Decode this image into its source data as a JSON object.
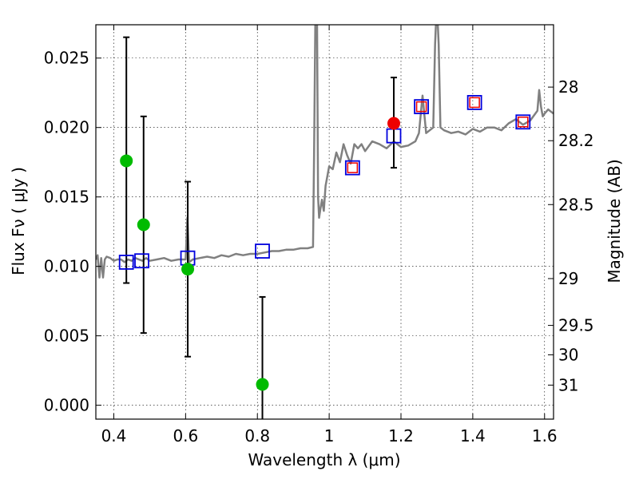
{
  "chart_data": {
    "type": "scatter",
    "xlabel": "Wavelength  λ (μm)",
    "ylabel": "Flux  Fν  ( μJy )",
    "ylabel_right": "Magnitude (AB)",
    "xlim": [
      0.35,
      1.625
    ],
    "ylim": [
      -0.001,
      0.0274
    ],
    "grid": true,
    "x_ticks": [
      0.4,
      0.6,
      0.8,
      1.0,
      1.2,
      1.4,
      1.6
    ],
    "x_tick_labels": [
      "0.4",
      "0.6",
      "0.8",
      "1",
      "1.2",
      "1.4",
      "1.6"
    ],
    "y_ticks": [
      0.0,
      0.005,
      0.01,
      0.015,
      0.02,
      0.025
    ],
    "y_tick_labels": [
      "0.000",
      "0.005",
      "0.010",
      "0.015",
      "0.020",
      "0.025"
    ],
    "right_ticks": [
      {
        "label": "28",
        "flux": 0.02291
      },
      {
        "label": "28.2",
        "flux": 0.01905
      },
      {
        "label": "28.5",
        "flux": 0.01445
      },
      {
        "label": "29",
        "flux": 0.00912
      },
      {
        "label": "29.5",
        "flux": 0.00575
      },
      {
        "label": "30",
        "flux": 0.00363
      },
      {
        "label": "31",
        "flux": 0.00145
      }
    ],
    "colors": {
      "model": "#808080",
      "green": "#00bb00",
      "red": "#ee0000",
      "blue": "#0000dd",
      "error": "#000000"
    },
    "series": [
      {
        "name": "model spectrum",
        "type": "line",
        "x": [
          0.35,
          0.355,
          0.36,
          0.365,
          0.37,
          0.375,
          0.38,
          0.39,
          0.4,
          0.41,
          0.42,
          0.43,
          0.44,
          0.45,
          0.46,
          0.47,
          0.48,
          0.49,
          0.5,
          0.52,
          0.54,
          0.56,
          0.58,
          0.6,
          0.605,
          0.61,
          0.62,
          0.64,
          0.66,
          0.68,
          0.7,
          0.72,
          0.74,
          0.76,
          0.78,
          0.8,
          0.82,
          0.84,
          0.86,
          0.88,
          0.9,
          0.92,
          0.94,
          0.955,
          0.958,
          0.962,
          0.966,
          0.969,
          0.972,
          0.976,
          0.98,
          0.985,
          0.99,
          1.0,
          1.01,
          1.02,
          1.03,
          1.04,
          1.05,
          1.06,
          1.07,
          1.08,
          1.09,
          1.1,
          1.12,
          1.14,
          1.16,
          1.18,
          1.2,
          1.22,
          1.24,
          1.25,
          1.26,
          1.27,
          1.28,
          1.29,
          1.295,
          1.3,
          1.305,
          1.31,
          1.32,
          1.34,
          1.36,
          1.38,
          1.4,
          1.42,
          1.44,
          1.46,
          1.48,
          1.5,
          1.52,
          1.54,
          1.56,
          1.58,
          1.585,
          1.59,
          1.595,
          1.6,
          1.61,
          1.625
        ],
        "y": [
          0.0105,
          0.0108,
          0.0092,
          0.0106,
          0.0092,
          0.0105,
          0.0107,
          0.0106,
          0.0104,
          0.0105,
          0.0105,
          0.0103,
          0.0105,
          0.0104,
          0.0106,
          0.0105,
          0.0104,
          0.0106,
          0.0104,
          0.0105,
          0.0106,
          0.0104,
          0.0105,
          0.0105,
          0.0135,
          0.0103,
          0.0105,
          0.0106,
          0.0107,
          0.0106,
          0.0108,
          0.0107,
          0.0109,
          0.0108,
          0.0109,
          0.0109,
          0.011,
          0.0111,
          0.0111,
          0.0112,
          0.0112,
          0.0113,
          0.0113,
          0.0114,
          0.018,
          0.029,
          0.029,
          0.015,
          0.0135,
          0.0142,
          0.0148,
          0.014,
          0.0158,
          0.0172,
          0.017,
          0.0182,
          0.0175,
          0.0188,
          0.018,
          0.0174,
          0.0188,
          0.0185,
          0.0188,
          0.0183,
          0.019,
          0.0188,
          0.0185,
          0.019,
          0.0186,
          0.0187,
          0.019,
          0.0196,
          0.0223,
          0.0196,
          0.0198,
          0.02,
          0.026,
          0.029,
          0.026,
          0.02,
          0.0198,
          0.0196,
          0.0197,
          0.0195,
          0.0199,
          0.0197,
          0.02,
          0.02,
          0.0198,
          0.0203,
          0.0206,
          0.0202,
          0.0205,
          0.0212,
          0.0227,
          0.0215,
          0.0208,
          0.021,
          0.0213,
          0.021
        ]
      },
      {
        "name": "green measurements",
        "type": "scatter",
        "x": [
          0.435,
          0.483,
          0.606,
          0.814
        ],
        "y": [
          0.0176,
          0.013,
          0.0098,
          0.0015
        ],
        "yerr_low": [
          0.0088,
          0.0052,
          0.0035,
          -0.0011
        ],
        "yerr_high": [
          0.0265,
          0.0208,
          0.0161,
          0.0078
        ]
      },
      {
        "name": "red measurement",
        "type": "scatter",
        "x": [
          1.18
        ],
        "y": [
          0.0203
        ],
        "yerr_low": [
          0.0171
        ],
        "yerr_high": [
          0.0236
        ]
      },
      {
        "name": "model bandpass (blue squares)",
        "type": "scatter",
        "x": [
          0.435,
          0.478,
          0.606,
          0.814,
          1.065,
          1.18,
          1.257,
          1.405,
          1.54
        ],
        "y": [
          0.0103,
          0.0104,
          0.0106,
          0.0111,
          0.0171,
          0.0194,
          0.0215,
          0.0218,
          0.0204
        ]
      },
      {
        "name": "red squares",
        "type": "scatter",
        "x": [
          1.065,
          1.257,
          1.405,
          1.54
        ],
        "y": [
          0.0171,
          0.0215,
          0.0218,
          0.0204
        ]
      }
    ]
  }
}
